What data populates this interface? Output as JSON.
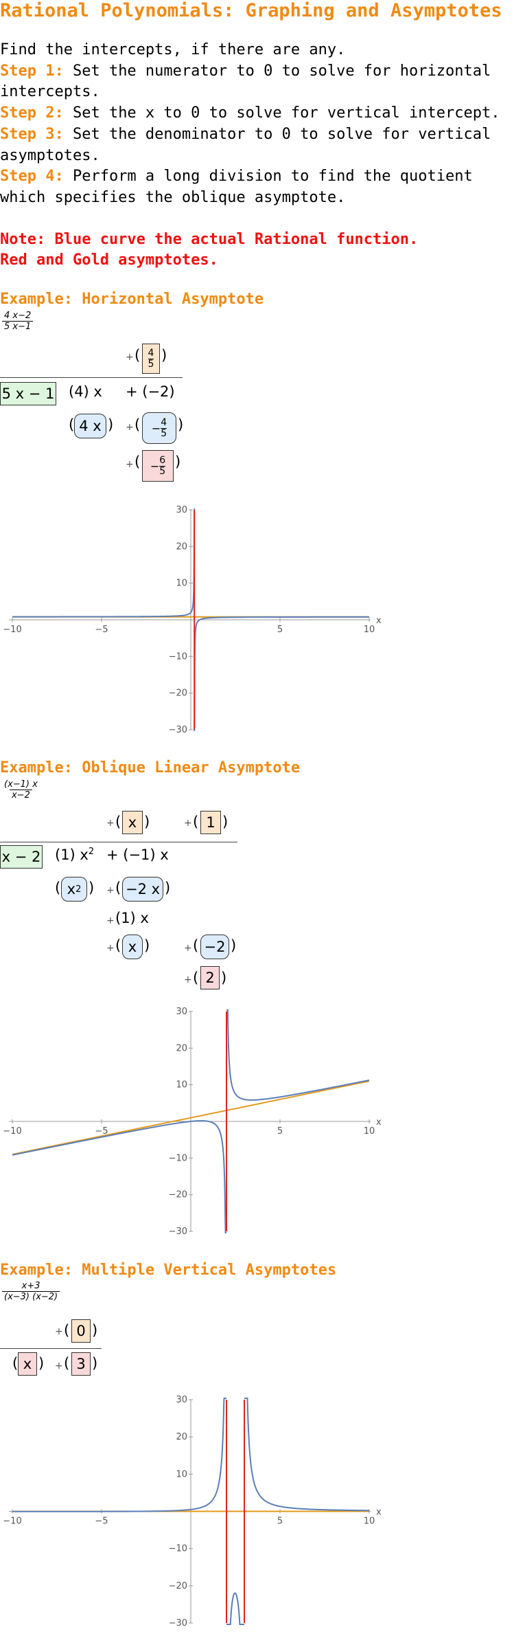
{
  "title": "Rational Polynomials: Graphing and Asymptotes",
  "intro": "Find the intercepts, if there are any.",
  "steps": [
    {
      "label": "Step 1:",
      "text": " Set the numerator to 0 to solve for horizontal intercepts."
    },
    {
      "label": "Step 2:",
      "text": " Set the x to 0 to solve for vertical intercept."
    },
    {
      "label": "Step 3:",
      "text": " Set the denominator to 0 to solve for vertical asymptotes."
    },
    {
      "label": "Step 4:",
      "text": " Perform a long division to find the quotient which specifies the oblique asymptote."
    }
  ],
  "notes": [
    "Note: Blue curve the actual Rational function.",
    "Red and Gold asymptotes."
  ],
  "examples": [
    {
      "heading": "Example: Horizontal Asymptote",
      "fraction": {
        "num": "4 x−2",
        "den": "5 x−1"
      },
      "quotient": {
        "num": "4",
        "den": "5"
      },
      "divisor": "5 x − 1",
      "dividend": [
        "(4) x",
        "+ (−2)"
      ],
      "sub1": "4 x",
      "sub2": {
        "num": "4",
        "den": "5",
        "sign": "−"
      },
      "remainder": {
        "num": "6",
        "den": "5",
        "sign": "−"
      },
      "plus": "+",
      "chart_data": {
        "type": "line",
        "xlim": [
          -10,
          10
        ],
        "ylim": [
          -30,
          30
        ],
        "xticks": [
          "−10",
          "−5",
          "5",
          "10"
        ],
        "yticks": [
          "30",
          "20",
          "10",
          "−10",
          "−20",
          "−30"
        ],
        "xlabel": "x",
        "function": "(4x-2)/(5x-1)",
        "vertical_asymptotes": [
          0.2
        ],
        "oblique_asymptote": {
          "slope": 0,
          "intercept": 0.8
        },
        "colors": {
          "curve": "#5a7fb8",
          "vertical": "#e02020",
          "oblique": "#e39a1a"
        }
      }
    },
    {
      "heading": "Example: Oblique Linear Asymptote",
      "fraction": {
        "num": "(x−1) x",
        "den": "x−2"
      },
      "quotient": [
        "x",
        "1"
      ],
      "divisor": "x − 2",
      "dividend": [
        "(1) x",
        "+ (−1) x"
      ],
      "lines": [
        "x",
        "−2 x",
        "(1) x",
        "x",
        "−2",
        "2"
      ],
      "plus": "+",
      "chart_data": {
        "type": "line",
        "xlim": [
          -10,
          10
        ],
        "ylim": [
          -30,
          30
        ],
        "xticks": [
          "−10",
          "−5",
          "5",
          "10"
        ],
        "yticks": [
          "30",
          "20",
          "10",
          "−10",
          "−20",
          "−30"
        ],
        "xlabel": "x",
        "function": "(x-1)x/(x-2)",
        "vertical_asymptotes": [
          2
        ],
        "oblique_asymptote": {
          "slope": 1,
          "intercept": 1
        },
        "colors": {
          "curve": "#5a7fb8",
          "vertical": "#e02020",
          "oblique": "#e39a1a"
        }
      }
    },
    {
      "heading": "Example: Multiple Vertical Asymptotes",
      "fraction": {
        "num": "x+3",
        "den": "(x−3) (x−2)"
      },
      "quotient": "0",
      "bottom": [
        "x",
        "3"
      ],
      "plus": "+",
      "chart_data": {
        "type": "line",
        "xlim": [
          -10,
          10
        ],
        "ylim": [
          -30,
          30
        ],
        "xticks": [
          "−10",
          "−5",
          "5",
          "10"
        ],
        "yticks": [
          "30",
          "20",
          "10",
          "−10",
          "−20",
          "−30"
        ],
        "xlabel": "x",
        "function": "(x+3)/((x-3)(x-2))",
        "vertical_asymptotes": [
          2,
          3
        ],
        "oblique_asymptote": {
          "slope": 0,
          "intercept": 0
        },
        "colors": {
          "curve": "#5a7fb8",
          "vertical": "#e02020",
          "oblique": "#e39a1a"
        }
      }
    }
  ]
}
